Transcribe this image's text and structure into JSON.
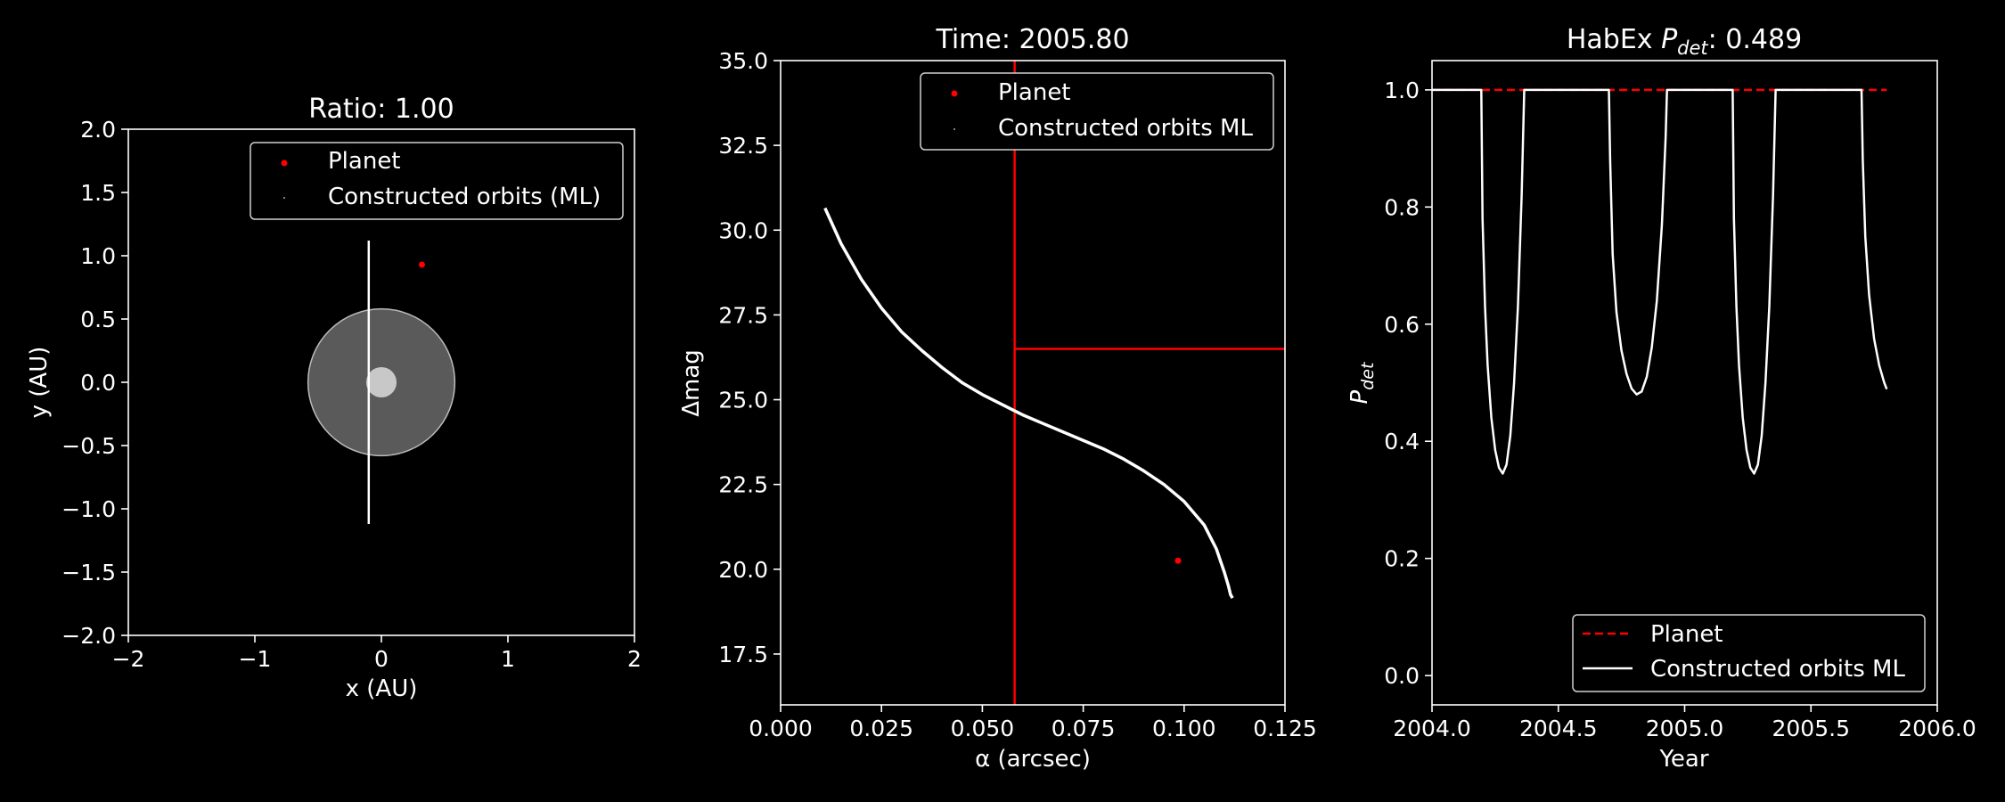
{
  "colors": {
    "background": "#000000",
    "foreground": "#ffffff",
    "planet": "#ff0000",
    "inner_zone": "#5a5a5a",
    "star": "#c8c8c8"
  },
  "chart_data": [
    {
      "type": "scatter",
      "title": "Ratio: 1.00",
      "xlabel": "x (AU)",
      "ylabel": "y (AU)",
      "xlim": [
        -2,
        2
      ],
      "ylim": [
        -2,
        2
      ],
      "xticks": [
        "−2",
        "−1",
        "0",
        "1",
        "2"
      ],
      "yticks": [
        "−2.0",
        "−1.5",
        "−1.0",
        "−0.5",
        "0.0",
        "0.5",
        "1.0",
        "1.5",
        "2.0"
      ],
      "legend": {
        "placement": "top-right",
        "entries": [
          "Planet",
          "Constructed orbits (ML)"
        ]
      },
      "planet": {
        "x": 0.32,
        "y": 0.93
      },
      "orbit_line": {
        "x": -0.1,
        "y_min": -1.12,
        "y_max": 1.12
      },
      "inner_zone_radius": 0.58,
      "star_radius": 0.12
    },
    {
      "type": "scatter",
      "title": "Time: 2005.80",
      "xlabel": "α (arcsec)",
      "ylabel": "Δmag",
      "xlim": [
        0.0,
        0.125
      ],
      "ylim": [
        16,
        35
      ],
      "xticks": [
        "0.000",
        "0.025",
        "0.050",
        "0.075",
        "0.100",
        "0.125"
      ],
      "yticks": [
        "17.5",
        "20.0",
        "22.5",
        "25.0",
        "27.5",
        "30.0",
        "32.5",
        "35.0"
      ],
      "legend": {
        "placement": "top-right",
        "entries": [
          "Planet",
          "Constructed orbits ML"
        ]
      },
      "planet": {
        "x": 0.0985,
        "y": 20.25
      },
      "iwa": 0.058,
      "dmag_limit": 26.5,
      "curve": [
        [
          0.011,
          30.65
        ],
        [
          0.015,
          29.6
        ],
        [
          0.02,
          28.55
        ],
        [
          0.025,
          27.7
        ],
        [
          0.03,
          27.0
        ],
        [
          0.035,
          26.45
        ],
        [
          0.04,
          25.95
        ],
        [
          0.045,
          25.5
        ],
        [
          0.05,
          25.15
        ],
        [
          0.055,
          24.85
        ],
        [
          0.06,
          24.55
        ],
        [
          0.065,
          24.3
        ],
        [
          0.07,
          24.05
        ],
        [
          0.075,
          23.8
        ],
        [
          0.08,
          23.55
        ],
        [
          0.085,
          23.25
        ],
        [
          0.09,
          22.9
        ],
        [
          0.095,
          22.5
        ],
        [
          0.1,
          22.0
        ],
        [
          0.105,
          21.3
        ],
        [
          0.108,
          20.6
        ],
        [
          0.11,
          19.9
        ],
        [
          0.111,
          19.5
        ],
        [
          0.1115,
          19.25
        ],
        [
          0.112,
          19.15
        ]
      ]
    },
    {
      "type": "line",
      "title_prefix": "HabEx ",
      "title_var": "P",
      "title_sub": "det",
      "title_suffix": ": 0.489",
      "xlabel": "Year",
      "ylabel_var": "P",
      "ylabel_sub": "det",
      "xlim": [
        2004.0,
        2006.0
      ],
      "ylim": [
        -0.05,
        1.05
      ],
      "xticks": [
        "2004.0",
        "2004.5",
        "2005.0",
        "2005.5",
        "2006.0"
      ],
      "yticks": [
        "0.0",
        "0.2",
        "0.4",
        "0.6",
        "0.8",
        "1.0"
      ],
      "legend": {
        "placement": "bottom-right",
        "entries": [
          "Planet",
          "Constructed orbits ML"
        ]
      },
      "planet_level": 1.0,
      "planet_range": [
        2004.0,
        2005.8
      ],
      "ml_curve": [
        [
          2004.0,
          1.0
        ],
        [
          2004.195,
          1.0
        ],
        [
          2004.2,
          0.78
        ],
        [
          2004.21,
          0.63
        ],
        [
          2004.22,
          0.53
        ],
        [
          2004.235,
          0.44
        ],
        [
          2004.25,
          0.385
        ],
        [
          2004.265,
          0.355
        ],
        [
          2004.28,
          0.345
        ],
        [
          2004.295,
          0.36
        ],
        [
          2004.31,
          0.41
        ],
        [
          2004.325,
          0.5
        ],
        [
          2004.34,
          0.63
        ],
        [
          2004.355,
          0.82
        ],
        [
          2004.365,
          1.0
        ],
        [
          2004.7,
          1.0
        ],
        [
          2004.705,
          0.88
        ],
        [
          2004.715,
          0.72
        ],
        [
          2004.73,
          0.62
        ],
        [
          2004.75,
          0.555
        ],
        [
          2004.77,
          0.515
        ],
        [
          2004.79,
          0.49
        ],
        [
          2004.81,
          0.48
        ],
        [
          2004.83,
          0.485
        ],
        [
          2004.85,
          0.51
        ],
        [
          2004.87,
          0.56
        ],
        [
          2004.89,
          0.64
        ],
        [
          2004.91,
          0.77
        ],
        [
          2004.925,
          0.92
        ],
        [
          2004.93,
          1.0
        ],
        [
          2005.19,
          1.0
        ],
        [
          2005.195,
          0.78
        ],
        [
          2005.205,
          0.63
        ],
        [
          2005.215,
          0.53
        ],
        [
          2005.23,
          0.44
        ],
        [
          2005.245,
          0.385
        ],
        [
          2005.26,
          0.355
        ],
        [
          2005.275,
          0.345
        ],
        [
          2005.29,
          0.36
        ],
        [
          2005.305,
          0.41
        ],
        [
          2005.32,
          0.5
        ],
        [
          2005.335,
          0.63
        ],
        [
          2005.35,
          0.82
        ],
        [
          2005.36,
          1.0
        ],
        [
          2005.7,
          1.0
        ],
        [
          2005.705,
          0.88
        ],
        [
          2005.715,
          0.75
        ],
        [
          2005.73,
          0.65
        ],
        [
          2005.75,
          0.575
        ],
        [
          2005.77,
          0.53
        ],
        [
          2005.79,
          0.5
        ],
        [
          2005.8,
          0.489
        ]
      ]
    }
  ]
}
